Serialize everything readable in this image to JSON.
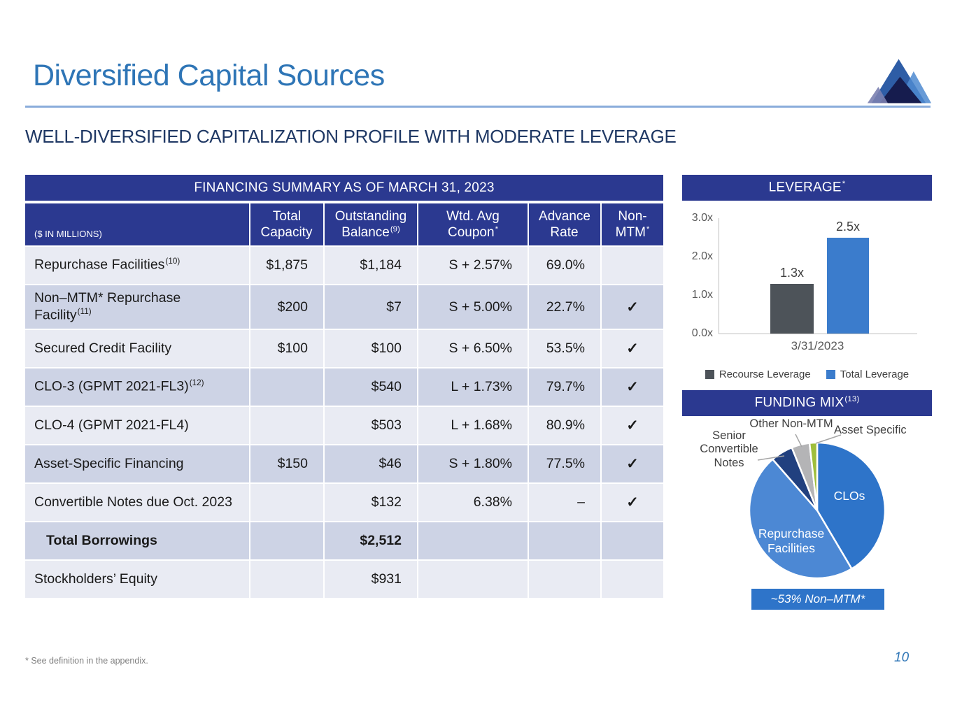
{
  "slide": {
    "title": "Diversified Capital Sources",
    "subtitle": "WELL-DIVERSIFIED CAPITALIZATION PROFILE WITH MODERATE LEVERAGE",
    "footnote": "* See definition in the appendix.",
    "page_number": "10"
  },
  "colors": {
    "title_blue": "#2E75B6",
    "panel_navy": "#2B3990",
    "subtitle_navy": "#1F3864",
    "row_light": "#E9EBF3",
    "row_dark": "#CDD3E5",
    "rule_blue": "#8AACDB",
    "callout_blue": "#2E74C9"
  },
  "table": {
    "title": "FINANCING SUMMARY AS OF MARCH 31, 2023",
    "unit_label": "($ IN MILLIONS)",
    "check_glyph": "✓",
    "columns": [
      {
        "text": "Total Capacity",
        "sup": ""
      },
      {
        "text": "Outstanding Balance",
        "sup": "(9)"
      },
      {
        "text": "Wtd. Avg Coupon",
        "sup": "*"
      },
      {
        "text": "Advance Rate",
        "sup": ""
      },
      {
        "text": "Non-MTM",
        "sup": "*"
      }
    ],
    "rows": [
      {
        "label": "Repurchase Facilities",
        "sup": "(10)",
        "capacity": "$1,875",
        "balance": "$1,184",
        "coupon": "S + 2.57%",
        "advance": "69.0%",
        "non_mtm": false,
        "bold": false,
        "wrap": false,
        "shade": "light"
      },
      {
        "label": "Non–MTM* Repurchase Facility",
        "sup": "(11)",
        "capacity": "$200",
        "balance": "$7",
        "coupon": "S + 5.00%",
        "advance": "22.7%",
        "non_mtm": true,
        "bold": false,
        "wrap": true,
        "shade": "dark"
      },
      {
        "label": "Secured Credit Facility",
        "sup": "",
        "capacity": "$100",
        "balance": "$100",
        "coupon": "S + 6.50%",
        "advance": "53.5%",
        "non_mtm": true,
        "bold": false,
        "wrap": false,
        "shade": "light"
      },
      {
        "label": "CLO-3 (GPMT 2021-FL3)",
        "sup": "(12)",
        "capacity": "",
        "balance": "$540",
        "coupon": "L + 1.73%",
        "advance": "79.7%",
        "non_mtm": true,
        "bold": false,
        "wrap": false,
        "shade": "dark"
      },
      {
        "label": "CLO-4 (GPMT 2021-FL4)",
        "sup": "",
        "capacity": "",
        "balance": "$503",
        "coupon": "L + 1.68%",
        "advance": "80.9%",
        "non_mtm": true,
        "bold": false,
        "wrap": false,
        "shade": "light"
      },
      {
        "label": "Asset-Specific Financing",
        "sup": "",
        "capacity": "$150",
        "balance": "$46",
        "coupon": "S + 1.80%",
        "advance": "77.5%",
        "non_mtm": true,
        "bold": false,
        "wrap": false,
        "shade": "dark"
      },
      {
        "label": "Convertible Notes due Oct. 2023",
        "sup": "",
        "capacity": "",
        "balance": "$132",
        "coupon": "6.38%",
        "advance": "–",
        "non_mtm": true,
        "bold": false,
        "wrap": false,
        "shade": "light"
      },
      {
        "label": "Total Borrowings",
        "sup": "",
        "capacity": "",
        "balance": "$2,512",
        "coupon": "",
        "advance": "",
        "non_mtm": false,
        "bold": true,
        "wrap": false,
        "shade": "dark"
      },
      {
        "label": "Stockholders’ Equity",
        "sup": "",
        "capacity": "",
        "balance": "$931",
        "coupon": "",
        "advance": "",
        "non_mtm": false,
        "bold": false,
        "wrap": false,
        "shade": "light"
      }
    ]
  },
  "chart_data": [
    {
      "type": "bar",
      "title": "LEVERAGE",
      "title_sup": "*",
      "categories": [
        "3/31/2023"
      ],
      "series": [
        {
          "name": "Recourse Leverage",
          "values": [
            1.3
          ],
          "color": "#4D5359"
        },
        {
          "name": "Total Leverage",
          "values": [
            2.5
          ],
          "color": "#3B7CCC"
        }
      ],
      "ylim": [
        0,
        3.0
      ],
      "yticks_top_down": [
        "3.0x",
        "2.0x",
        "1.0x",
        "0.0x"
      ],
      "value_suffix": "x",
      "grid": false,
      "legend_position": "bottom"
    },
    {
      "type": "pie",
      "title": "FUNDING MIX",
      "title_sup": "(13)",
      "direction": "clockwise",
      "start_angle_deg": 0,
      "slices": [
        {
          "label": "CLOs",
          "value_pct": 41.5,
          "color": "#2E74C9",
          "label_placement": "inside"
        },
        {
          "label": "Repurchase Facilities",
          "value_pct": 47.1,
          "color": "#4C88D4",
          "label_placement": "inside"
        },
        {
          "label": "Senior Convertible Notes",
          "value_pct": 5.3,
          "color": "#21407F",
          "label_placement": "outside"
        },
        {
          "label": "Other Non-MTM",
          "value_pct": 4.3,
          "color": "#B4B4B6",
          "label_placement": "outside"
        },
        {
          "label": "Asset Specific",
          "value_pct": 1.8,
          "color": "#9FBE3B",
          "label_placement": "outside"
        }
      ],
      "callout": "~53% Non–MTM*"
    }
  ]
}
